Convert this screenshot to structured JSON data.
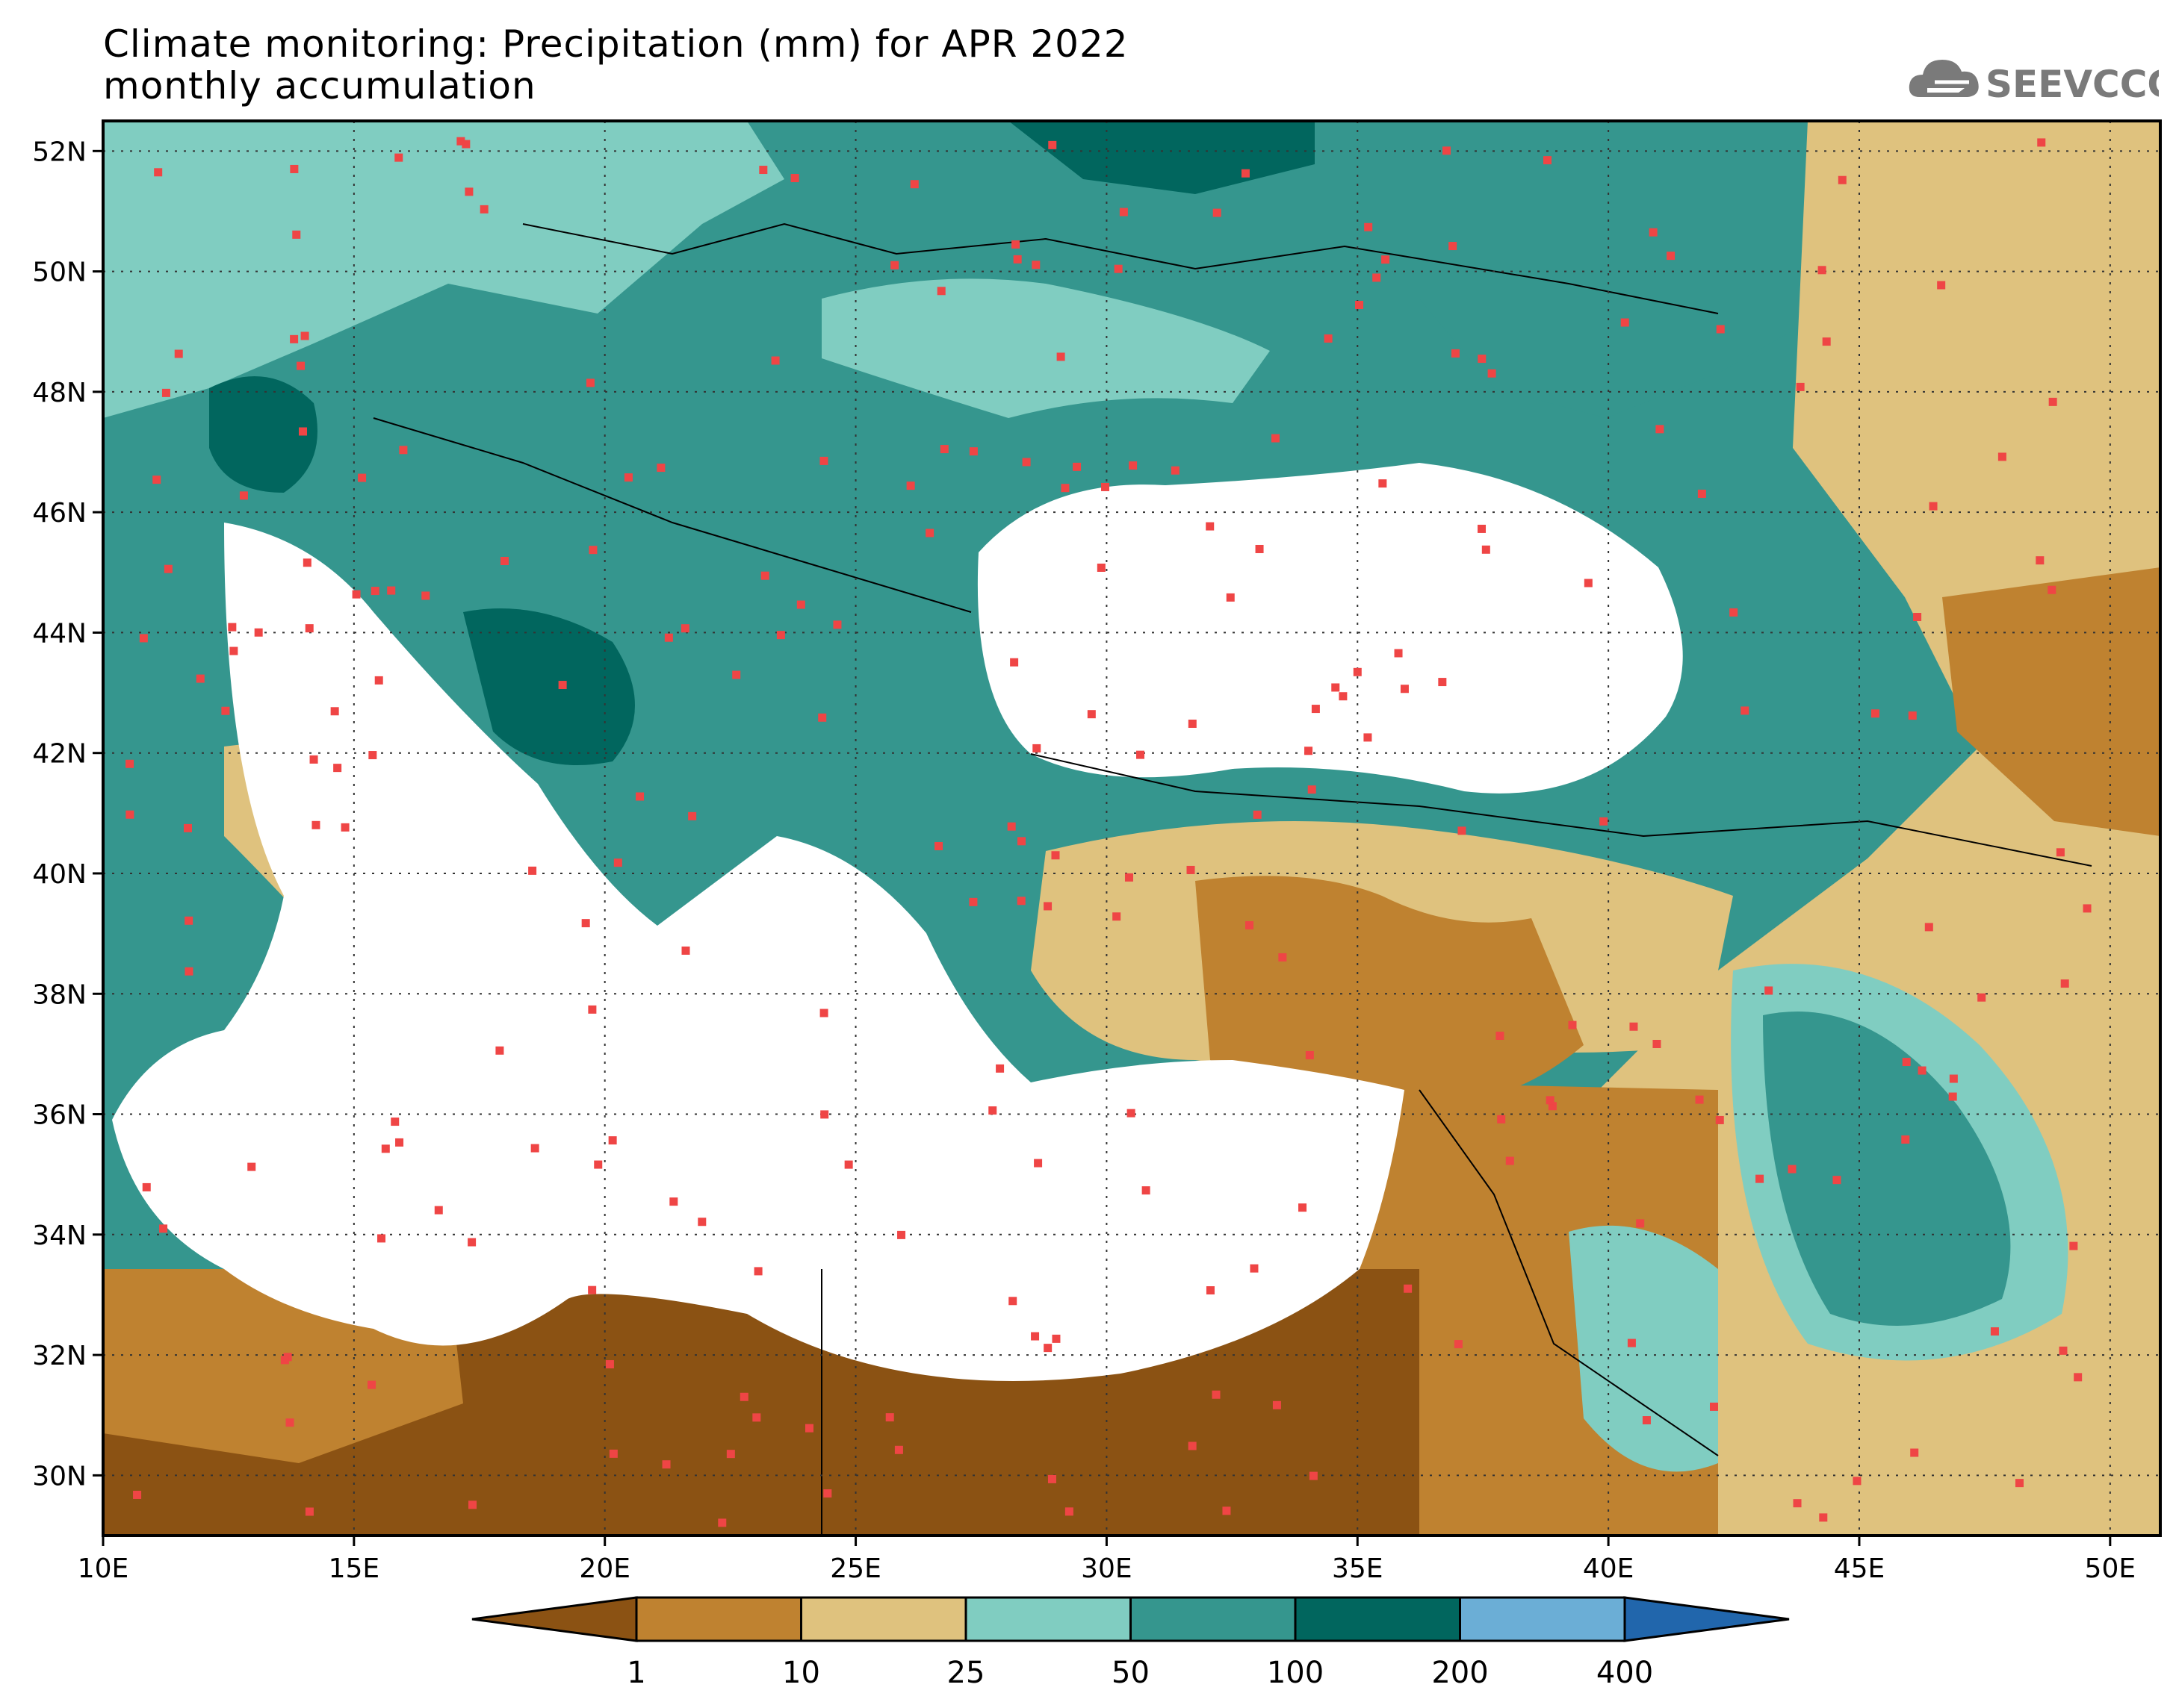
{
  "title": {
    "line1": "Climate monitoring: Precipitation (mm) for APR 2022",
    "line2": "monthly accumulation"
  },
  "logo": {
    "text": "SEEVCCC",
    "icon": "cloud-logo-icon"
  },
  "map": {
    "lon_range": [
      10,
      51
    ],
    "lat_range": [
      29,
      52.5
    ],
    "lon_ticks": [
      "10E",
      "15E",
      "20E",
      "25E",
      "30E",
      "35E",
      "40E",
      "45E",
      "50E"
    ],
    "lat_ticks": [
      "30N",
      "32N",
      "34N",
      "36N",
      "38N",
      "40N",
      "42N",
      "44N",
      "46N",
      "48N",
      "50N",
      "52N"
    ],
    "gridlines": "dotted"
  },
  "colorbar": {
    "labels": [
      "1",
      "10",
      "25",
      "50",
      "100",
      "200",
      "400"
    ],
    "colors": [
      "#8b5213",
      "#bf8230",
      "#dfc27e",
      "#80cdc1",
      "#35968e",
      "#01665e",
      "#6baed6",
      "#2166ac"
    ],
    "extend": "both"
  },
  "colors": {
    "water": "#ffffff",
    "station_marker": "#ef4545",
    "border": "#000000"
  }
}
